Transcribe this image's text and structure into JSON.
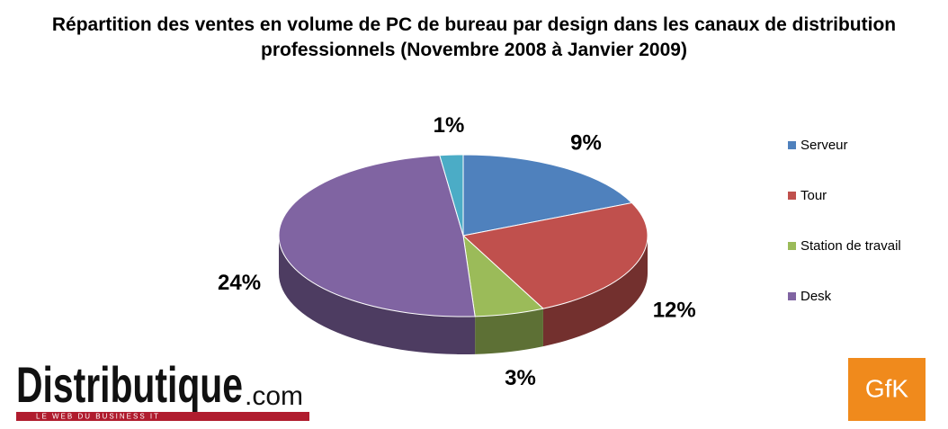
{
  "chart_data": {
    "type": "pie3d",
    "title": "Répartition des ventes en volume de PC de bureau par design dans les canaux de distribution professionnels (Novembre 2008 à Janvier 2009)",
    "categories": [
      "Serveur",
      "Tour",
      "Station de travail",
      "Desk",
      null
    ],
    "values": [
      9,
      12,
      3,
      24,
      1
    ],
    "value_labels": [
      "9%",
      "12%",
      "3%",
      "24%",
      "1%"
    ],
    "colors": [
      "#4f81bd",
      "#c0504d",
      "#9bbb59",
      "#8064a2",
      "#4bacc6"
    ],
    "legend": "right"
  },
  "logos": {
    "publisher": "Distributique",
    "publisher_suffix": ".com",
    "publisher_tagline": "LE WEB DU BUSINESS IT",
    "source": "GfK"
  }
}
